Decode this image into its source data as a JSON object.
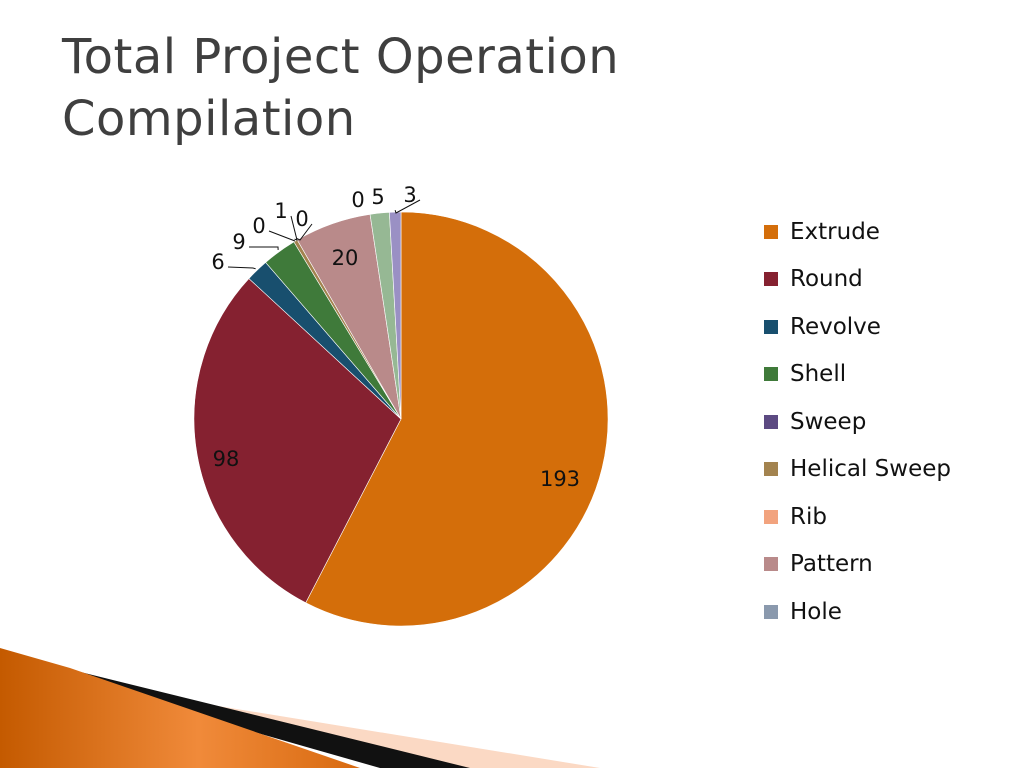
{
  "slide": {
    "title": "Total Project Operation Compilation"
  },
  "chart_data": {
    "type": "pie",
    "categories": [
      "Extrude",
      "Round",
      "Revolve",
      "Shell",
      "Sweep",
      "Helical Sweep",
      "Rib",
      "Pattern",
      "Hole",
      "",
      ""
    ],
    "values": [
      193,
      98,
      6,
      9,
      0,
      1,
      0,
      20,
      0,
      5,
      3
    ],
    "labels": [
      "193",
      "98",
      "6",
      "9",
      "0",
      "1",
      "0",
      "20",
      "0",
      "5",
      "3"
    ],
    "colors": [
      "#D46E0A",
      "#852130",
      "#184F6E",
      "#3F7A3A",
      "#5C4A82",
      "#A3834F",
      "#F2A37E",
      "#B98A8A",
      "#8A99AD",
      "#96B894",
      "#9A90C4"
    ],
    "legend": {
      "position": "right",
      "entries": [
        "Extrude",
        "Round",
        "Revolve",
        "Shell",
        "Sweep",
        "Helical Sweep",
        "Rib",
        "Pattern",
        "Hole"
      ]
    }
  }
}
